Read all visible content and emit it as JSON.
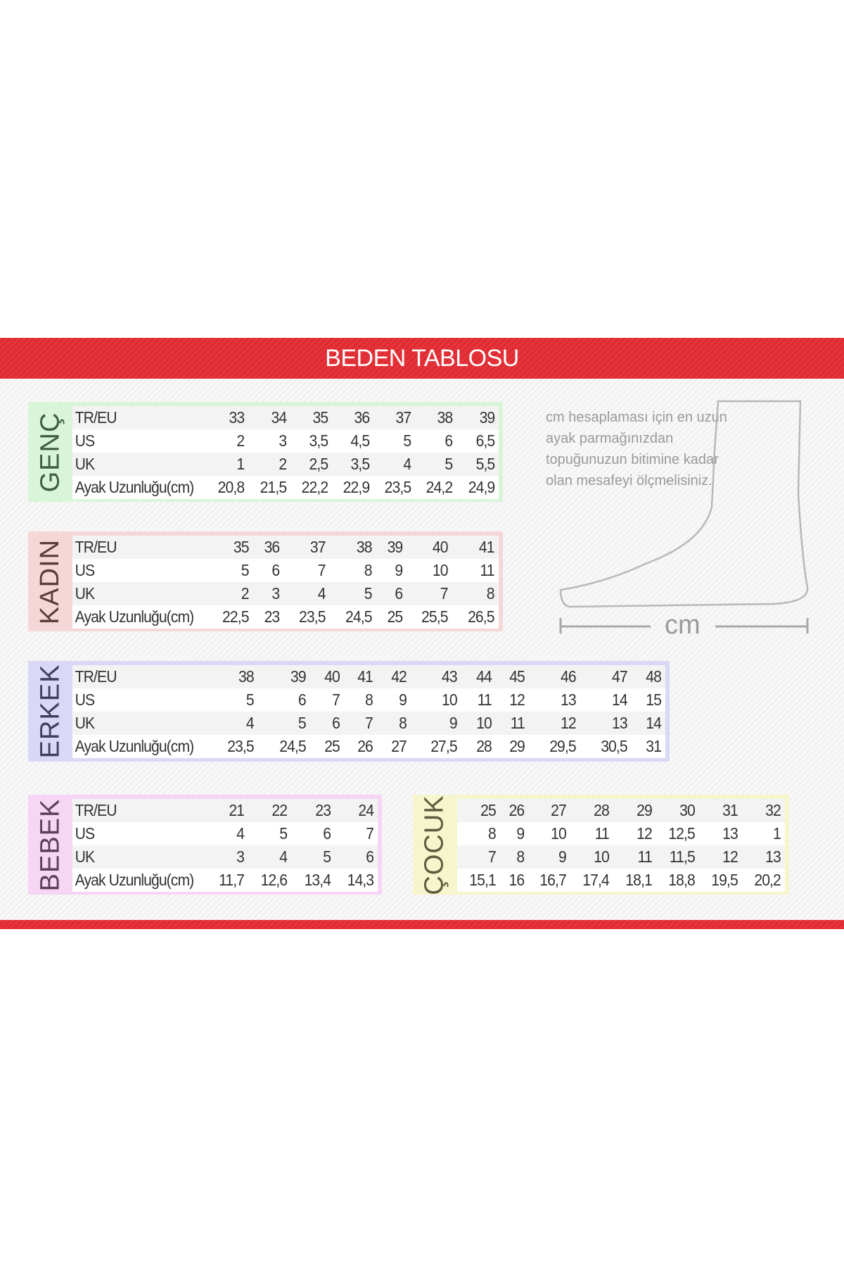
{
  "title": "BEDEN TABLOSU",
  "info_text": "cm hesaplaması için en uzun ayak parmağınızdan topuğunuzun bitimine kadar olan mesafeyi ölçmelisiniz.",
  "measure_label": "cm",
  "colors": {
    "brand_red": "#e8343a"
  },
  "tables": [
    {
      "id": "genc",
      "label": "GENÇ",
      "bg": "#d9f5d9",
      "fg": "#3e5e3e",
      "row_labels": [
        "TR/EU",
        "US",
        "UK",
        "Ayak Uzunluğu(cm)"
      ],
      "rows": [
        [
          "33",
          "34",
          "35",
          "36",
          "37",
          "38",
          "39"
        ],
        [
          "2",
          "3",
          "3,5",
          "4,5",
          "5",
          "6",
          "6,5"
        ],
        [
          "1",
          "2",
          "2,5",
          "3,5",
          "4",
          "5",
          "5,5"
        ],
        [
          "20,8",
          "21,5",
          "22,2",
          "22,9",
          "23,5",
          "24,2",
          "24,9"
        ]
      ]
    },
    {
      "id": "kadin",
      "label": "KADIN",
      "bg": "#f5d7d7",
      "fg": "#5a3e3e",
      "row_labels": [
        "TR/EU",
        "US",
        "UK",
        "Ayak Uzunluğu(cm)"
      ],
      "rows": [
        [
          "35",
          "36",
          "37",
          "38",
          "39",
          "40",
          "41"
        ],
        [
          "5",
          "6",
          "7",
          "8",
          "9",
          "10",
          "11"
        ],
        [
          "2",
          "3",
          "4",
          "5",
          "6",
          "7",
          "8"
        ],
        [
          "22,5",
          "23",
          "23,5",
          "24,5",
          "25",
          "25,5",
          "26,5"
        ]
      ]
    },
    {
      "id": "erkek",
      "label": "ERKEK",
      "bg": "#d9d9f7",
      "fg": "#3e3e5e",
      "row_labels": [
        "TR/EU",
        "US",
        "UK",
        "Ayak Uzunluğu(cm)"
      ],
      "rows": [
        [
          "38",
          "39",
          "40",
          "41",
          "42",
          "43",
          "44",
          "45",
          "46",
          "47",
          "48"
        ],
        [
          "5",
          "6",
          "7",
          "8",
          "9",
          "10",
          "11",
          "12",
          "13",
          "14",
          "15"
        ],
        [
          "4",
          "5",
          "6",
          "7",
          "8",
          "9",
          "10",
          "11",
          "12",
          "13",
          "14"
        ],
        [
          "23,5",
          "24,5",
          "25",
          "26",
          "27",
          "27,5",
          "28",
          "29",
          "29,5",
          "30,5",
          "31"
        ]
      ]
    },
    {
      "id": "bebek",
      "label": "BEBEK",
      "bg": "#f7d5f5",
      "fg": "#5e3e5c",
      "row_labels": [
        "TR/EU",
        "US",
        "UK",
        "Ayak Uzunluğu(cm)"
      ],
      "rows": [
        [
          "21",
          "22",
          "23",
          "24"
        ],
        [
          "4",
          "5",
          "6",
          "7"
        ],
        [
          "3",
          "4",
          "5",
          "6"
        ],
        [
          "11,7",
          "12,6",
          "13,4",
          "14,3"
        ]
      ]
    },
    {
      "id": "cocuk",
      "label": "ÇOCUK",
      "bg": "#f7f5cc",
      "fg": "#5e5c3e",
      "row_labels": [],
      "rows": [
        [
          "25",
          "26",
          "27",
          "28",
          "29",
          "30",
          "31",
          "32"
        ],
        [
          "8",
          "9",
          "10",
          "11",
          "12",
          "12,5",
          "13",
          "1"
        ],
        [
          "7",
          "8",
          "9",
          "10",
          "11",
          "11,5",
          "12",
          "13"
        ],
        [
          "15,1",
          "16",
          "16,7",
          "17,4",
          "18,1",
          "18,8",
          "19,5",
          "20,2"
        ]
      ]
    }
  ]
}
